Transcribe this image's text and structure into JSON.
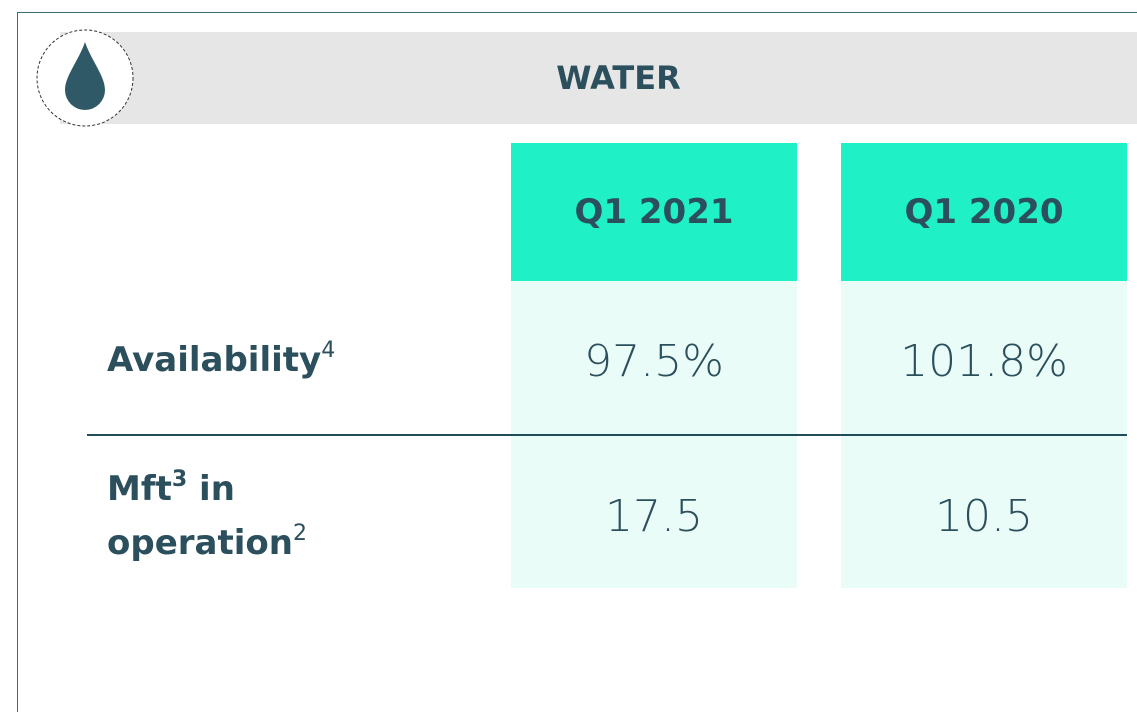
{
  "header": {
    "title": "WATER"
  },
  "table": {
    "columns": [
      "Q1 2021",
      "Q1 2020"
    ],
    "rows": [
      {
        "label": "Availability",
        "label_sup": "4",
        "values": [
          "97.5%",
          "101.8%"
        ]
      },
      {
        "label": "Mft",
        "label_sup": "3",
        "label_rest": " in operation",
        "label_rest_sup": "2",
        "values": [
          "17.5",
          "10.5"
        ]
      }
    ]
  }
}
